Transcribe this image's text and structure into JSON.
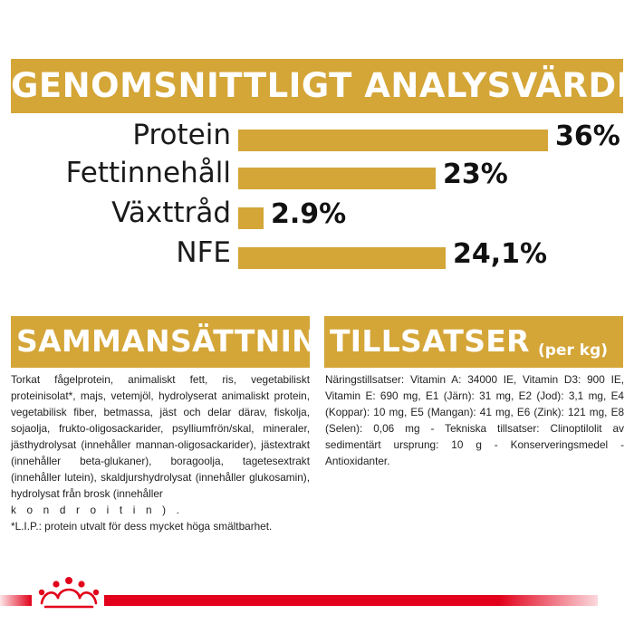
{
  "header": {
    "title": "GENOMSNITTLIGT ANALYSVÄRDE"
  },
  "chart_data": {
    "type": "bar",
    "orientation": "horizontal",
    "categories": [
      "Protein",
      "Fettinnehåll",
      "Växttråd",
      "NFE"
    ],
    "values": [
      36,
      23,
      2.9,
      24.1
    ],
    "value_labels": [
      "36%",
      "23%",
      "2.9%",
      "24,1%"
    ],
    "xlim": [
      0,
      36
    ],
    "grid": false,
    "bar_color": "#d4a537"
  },
  "composition": {
    "title": "SAMMANSÄTTNING",
    "text": "Torkat fågelprotein, animaliskt fett, ris, vegetabiliskt proteinisolat*, majs, vetemjöl, hydrolyserat animaliskt protein, vegetabilisk fiber, betmassa, jäst och delar därav, fiskolja, sojaolja, frukto-oligosackarider, psylliumfrön/skal, mineraler, jästhydrolysat (innehåller mannan-oligosackarider), jästextrakt (innehåller beta-glukaner), boragoolja, tagetesextrakt (innehåller lutein), skaldjurshydrolysat (innehåller glukosamin), hydrolysat från brosk (innehåller",
    "text_spaced": "kondroitin).",
    "footnote": "*L.I.P.: protein utvalt för dess mycket höga smältbarhet."
  },
  "additives": {
    "title": "TILLSATSER",
    "subtitle": "(per kg)",
    "text": "Näringstillsatser: Vitamin A: 34000 IE, Vitamin D3: 900 IE, Vitamin E: 690 mg, E1 (Järn): 31 mg, E2 (Jod): 3,1 mg, E4 (Koppar): 10 mg, E5 (Mangan): 41 mg, E6 (Zink): 121 mg, E8 (Selen): 0,06 mg - Tekniska tillsatser: Clinoptilolit av sedimentärt ursprung: 10 g - Konserveringsmedel - Antioxidanter."
  },
  "colors": {
    "accent": "#d4a537",
    "brand_red": "#e2001a"
  },
  "icons": {
    "logo": "royal-canin-crown-icon"
  }
}
